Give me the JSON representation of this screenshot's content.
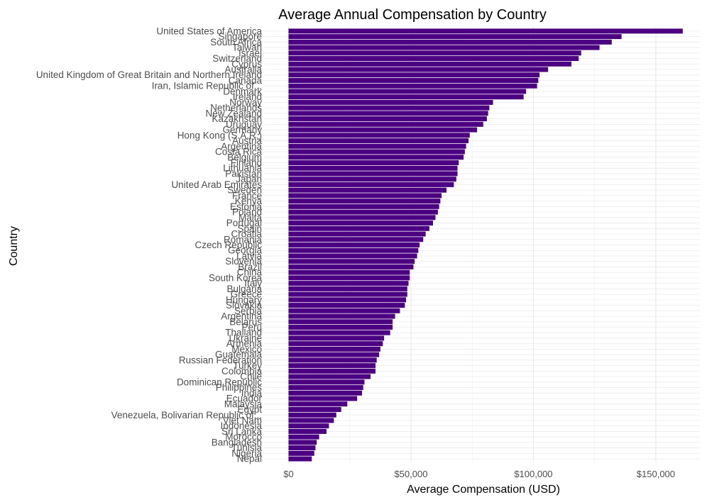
{
  "chart_data": {
    "type": "bar",
    "orientation": "horizontal",
    "title": "Average Annual Compensation by Country",
    "xlabel": "Average Compensation (USD)",
    "ylabel": "Country",
    "xlim": [
      -10000,
      168000
    ],
    "x_ticks": [
      0,
      50000,
      100000,
      150000
    ],
    "x_tick_labels": [
      "$0",
      "$50,000",
      "$100,000",
      "$150,000"
    ],
    "grid": true,
    "bar_color": "#4B0082",
    "categories": [
      "United States of America",
      "Singapore",
      "South Africa",
      "Taiwan",
      "Israel",
      "Switzerland",
      "Cyprus",
      "Australia",
      "United Kingdom of Great Britain and Northern Ireland",
      "Canada",
      "Iran, Islamic Republic of...",
      "Denmark",
      "Ireland",
      "Norway",
      "Netherlands",
      "New Zealand",
      "Kazakhstan",
      "Uruguay",
      "Germany",
      "Hong Kong (S.A.R.)",
      "Austria",
      "Argentina",
      "Costa Rica",
      "Belgium",
      "Finland",
      "Lithuania",
      "Pakistan",
      "Japan",
      "United Arab Emirates",
      "Sweden",
      "France",
      "Kenya",
      "Estonia",
      "Poland",
      "Malta",
      "Portugal",
      "Spain",
      "Croatia",
      "Romania",
      "Czech Republic",
      "Georgia",
      "Latvia",
      "Slovenia",
      "Brazil",
      "China",
      "South Korea",
      "Italy",
      "Bulgaria",
      "Greece",
      "Hungary",
      "Slovakia",
      "Serbia",
      "Argentina",
      "Belarus",
      "Peru",
      "Thailand",
      "Ukraine",
      "Armenia",
      "Mexico",
      "Guatemala",
      "Russian Federation",
      "Turkey",
      "Colombia",
      "Chile",
      "Dominican Republic",
      "Philippines",
      "India",
      "Ecuador",
      "Malaysia",
      "Egypt",
      "Venezuela, Bolivarian Republic of...",
      "Viet Nam",
      "Indonesia",
      "Sri Lanka",
      "Morocco",
      "Bangladesh",
      "Tunisia",
      "Nigeria",
      "Nepal"
    ],
    "values": [
      161000,
      136000,
      132000,
      127000,
      119500,
      118500,
      115500,
      106000,
      102500,
      102000,
      101500,
      97000,
      96000,
      83500,
      82000,
      81500,
      81000,
      79500,
      77000,
      74000,
      73500,
      72500,
      72000,
      71500,
      69500,
      69000,
      69000,
      68500,
      67500,
      64500,
      62500,
      62000,
      61500,
      61000,
      60000,
      59000,
      57500,
      56000,
      55000,
      53500,
      53000,
      52500,
      51500,
      51000,
      49500,
      49500,
      49000,
      48500,
      48500,
      48000,
      47500,
      45500,
      43500,
      42500,
      42500,
      41500,
      39000,
      38500,
      37500,
      37000,
      36000,
      35500,
      35500,
      33500,
      31000,
      30500,
      30000,
      28000,
      24000,
      21500,
      19500,
      18500,
      16500,
      15500,
      12500,
      11500,
      11000,
      10500,
      9500
    ]
  }
}
